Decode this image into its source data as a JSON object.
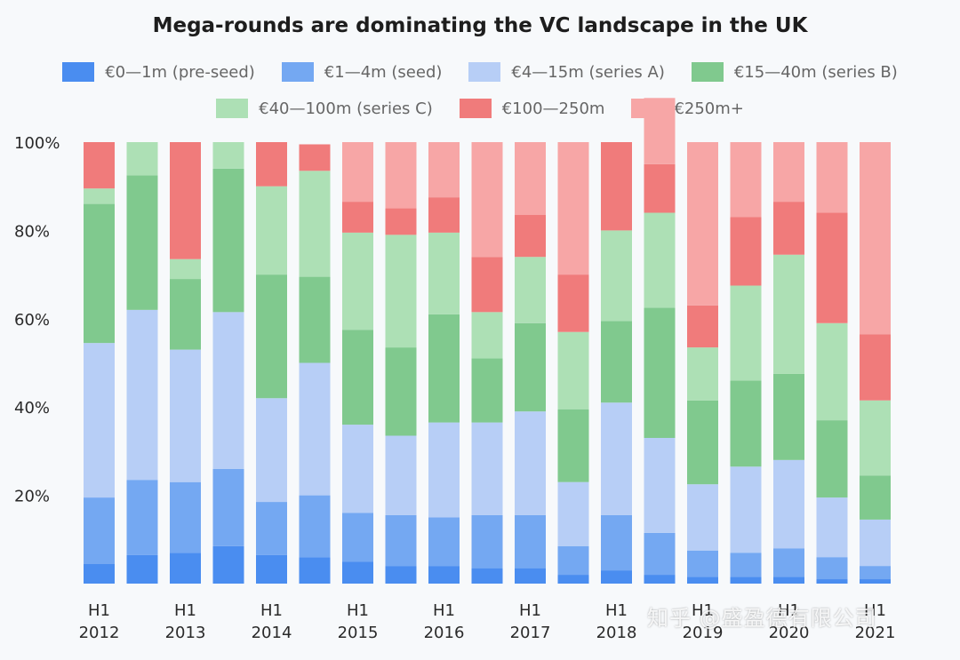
{
  "chart_data": {
    "type": "bar",
    "stacked": "percent",
    "title": "Mega-rounds are dominating the VC landscape in the UK",
    "xlabel": "",
    "ylabel": "",
    "ylim": [
      0,
      100
    ],
    "y_ticks": [
      "20%",
      "40%",
      "60%",
      "80%",
      "100%"
    ],
    "grid": false,
    "legend_position": "top",
    "periods": [
      "2012-H1",
      "2012-H2",
      "2013-H1",
      "2013-H2",
      "2014-H1",
      "2014-H2",
      "2015-H1",
      "2015-H2",
      "2016-H1",
      "2016-H2",
      "2017-H1",
      "2017-H2",
      "2018-H1",
      "2018-H2",
      "2019-H1",
      "2019-H2",
      "2020-H1",
      "2020-H2",
      "2021-H1"
    ],
    "x_tick_labels": [
      {
        "half": "H1",
        "year": "2012"
      },
      {
        "half": "",
        "year": ""
      },
      {
        "half": "H1",
        "year": "2013"
      },
      {
        "half": "",
        "year": ""
      },
      {
        "half": "H1",
        "year": "2014"
      },
      {
        "half": "",
        "year": ""
      },
      {
        "half": "H1",
        "year": "2015"
      },
      {
        "half": "",
        "year": ""
      },
      {
        "half": "H1",
        "year": "2016"
      },
      {
        "half": "",
        "year": ""
      },
      {
        "half": "H1",
        "year": "2017"
      },
      {
        "half": "",
        "year": ""
      },
      {
        "half": "H1",
        "year": "2018"
      },
      {
        "half": "",
        "year": ""
      },
      {
        "half": "H1",
        "year": "2019"
      },
      {
        "half": "",
        "year": ""
      },
      {
        "half": "H1",
        "year": "2020"
      },
      {
        "half": "",
        "year": ""
      },
      {
        "half": "H1",
        "year": "2021"
      }
    ],
    "series": [
      {
        "name": "€0—1m (pre-seed)",
        "color": "#4a8df0",
        "values": [
          4.5,
          6.5,
          7,
          8.5,
          6.5,
          6,
          5,
          4,
          4,
          3.5,
          3.5,
          2,
          3,
          2,
          1.5,
          1.5,
          1.5,
          1,
          1
        ]
      },
      {
        "name": "€1—4m (seed)",
        "color": "#74a8f2",
        "values": [
          15,
          17,
          16,
          17.5,
          12,
          14,
          11,
          11.5,
          11,
          12,
          12,
          6.5,
          12.5,
          9.5,
          6,
          5.5,
          6.5,
          5,
          3
        ]
      },
      {
        "name": "€4—15m (series A)",
        "color": "#b7cef6",
        "values": [
          35,
          38.5,
          30,
          35.5,
          23.5,
          30,
          20,
          18,
          21.5,
          21,
          23.5,
          14.5,
          25.5,
          21.5,
          15,
          19.5,
          20,
          13.5,
          10.5
        ]
      },
      {
        "name": "€15—40m (series B)",
        "color": "#80c98e",
        "values": [
          31.5,
          30.5,
          16,
          32.5,
          28,
          19.5,
          21.5,
          20,
          24.5,
          14.5,
          20,
          16.5,
          18.5,
          29.5,
          19,
          19.5,
          19.5,
          17.5,
          10
        ]
      },
      {
        "name": "€40—100m (series C)",
        "color": "#ade0b5",
        "values": [
          3.5,
          7.5,
          4.5,
          6,
          20,
          24,
          22,
          25.5,
          18.5,
          10.5,
          15,
          17.5,
          20.5,
          21.5,
          12,
          21.5,
          27,
          22,
          17
        ]
      },
      {
        "name": "€100—250m",
        "color": "#f07b7b",
        "values": [
          10.5,
          0,
          26.5,
          0,
          10,
          6,
          7,
          6,
          8,
          12.5,
          9.5,
          13,
          20,
          11,
          9.5,
          15.5,
          12,
          25,
          15
        ]
      },
      {
        "name": "€250m+",
        "color": "#f7a6a6",
        "values": [
          0,
          0,
          0,
          0,
          0,
          0,
          13.5,
          15,
          12.5,
          26,
          16.5,
          30,
          0,
          15,
          37,
          17,
          13.5,
          16,
          43.5
        ]
      }
    ]
  },
  "legend_rows": [
    [
      0,
      1,
      2,
      3
    ],
    [
      4,
      5,
      6
    ]
  ],
  "watermark": "知乎 @盛盈德有限公司"
}
